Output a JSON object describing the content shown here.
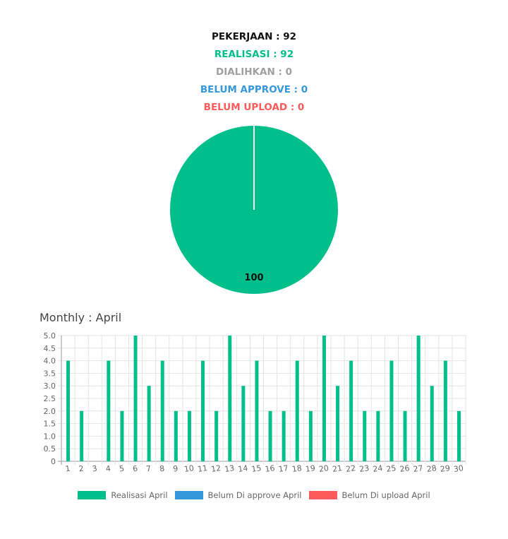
{
  "summary": {
    "pekerjaan": "PEKERJAAN : 92",
    "realisasi": "REALISASI : 92",
    "dialihkan": "DIALIHKAN : 0",
    "belum_approve": "BELUM APPROVE : 0",
    "belum_upload": "BELUM UPLOAD : 0"
  },
  "colors": {
    "green": "#00bf8a",
    "grey": "#a0a0a0",
    "blue": "#3498db",
    "red": "#ff5a5a",
    "black": "#111111"
  },
  "monthly_title": "Monthly : April",
  "chart_data": [
    {
      "type": "pie",
      "labels": [
        "Realisasi",
        "Dialihkan",
        "Belum Approve",
        "Belum Upload"
      ],
      "values": [
        100,
        0,
        0,
        0
      ],
      "data_labels": [
        "100"
      ]
    },
    {
      "type": "bar",
      "categories": [
        "1",
        "2",
        "3",
        "4",
        "5",
        "6",
        "7",
        "8",
        "9",
        "10",
        "11",
        "12",
        "13",
        "14",
        "15",
        "16",
        "17",
        "18",
        "19",
        "20",
        "21",
        "22",
        "23",
        "24",
        "25",
        "26",
        "27",
        "28",
        "29",
        "30"
      ],
      "series": [
        {
          "name": "Realisasi April",
          "color": "#00bf8a",
          "values": [
            4,
            2,
            0,
            4,
            2,
            5,
            3,
            4,
            2,
            2,
            4,
            2,
            5,
            3,
            4,
            2,
            2,
            4,
            2,
            5,
            3,
            4,
            2,
            2,
            4,
            2,
            5,
            3,
            4,
            2
          ]
        },
        {
          "name": "Belum Di approve April",
          "color": "#3498db",
          "values": [
            0,
            0,
            0,
            0,
            0,
            0,
            0,
            0,
            0,
            0,
            0,
            0,
            0,
            0,
            0,
            0,
            0,
            0,
            0,
            0,
            0,
            0,
            0,
            0,
            0,
            0,
            0,
            0,
            0,
            0
          ]
        },
        {
          "name": "Belum Di upload April",
          "color": "#ff5a5a",
          "values": [
            0,
            0,
            0,
            0,
            0,
            0,
            0,
            0,
            0,
            0,
            0,
            0,
            0,
            0,
            0,
            0,
            0,
            0,
            0,
            0,
            0,
            0,
            0,
            0,
            0,
            0,
            0,
            0,
            0,
            0
          ]
        }
      ],
      "yticks": [
        "0",
        "0.5",
        "1.0",
        "1.5",
        "2.0",
        "2.5",
        "3.0",
        "3.5",
        "4.0",
        "4.5",
        "5.0"
      ],
      "ylim": [
        0,
        5
      ],
      "grid": true,
      "legend": "bottom"
    }
  ]
}
